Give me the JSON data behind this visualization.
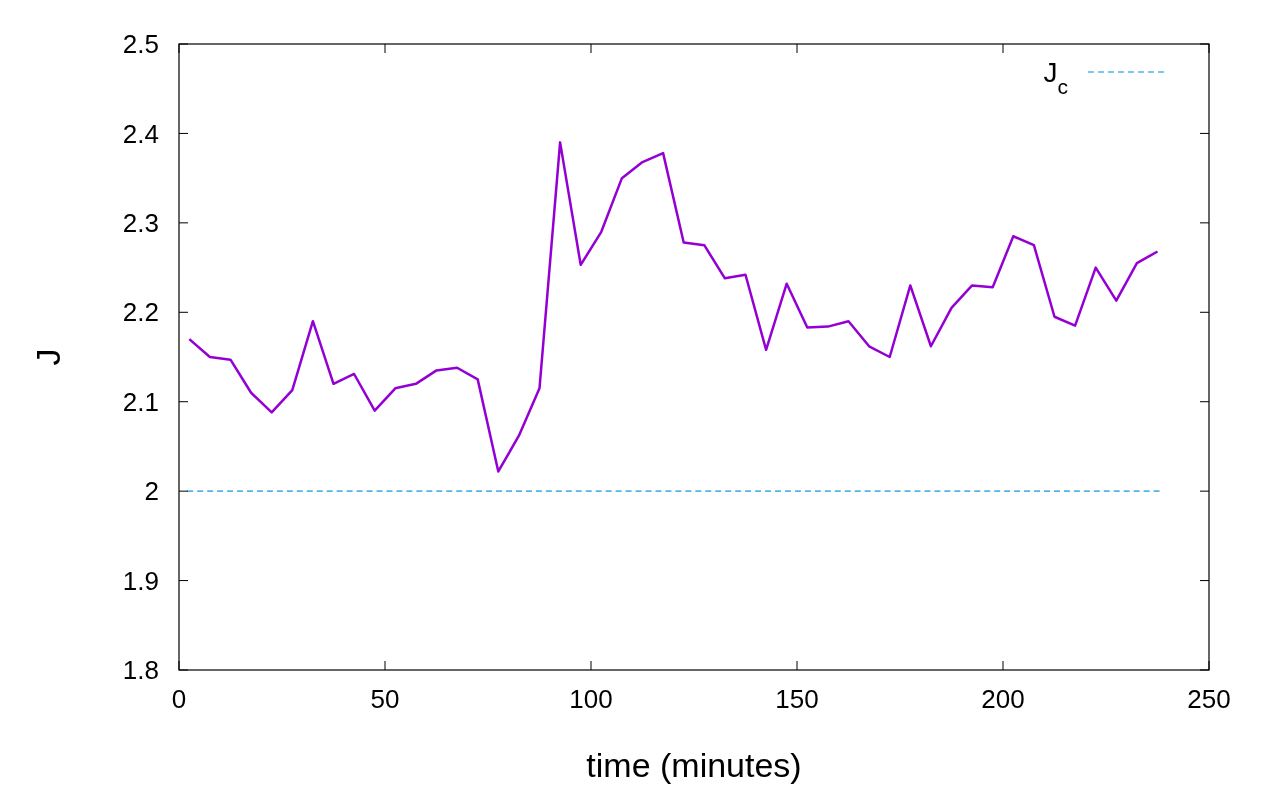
{
  "chart_data": {
    "type": "line",
    "xlabel": "time (minutes)",
    "ylabel": "J",
    "xlim": [
      0,
      250
    ],
    "xticks": [
      0,
      50,
      100,
      150,
      200,
      250
    ],
    "ylim": [
      1.8,
      2.5
    ],
    "yticks": [
      1.8,
      1.9,
      2,
      2.1,
      2.2,
      2.3,
      2.4,
      2.5
    ],
    "grid": false,
    "legend": "top right",
    "marker": "none",
    "series": [
      {
        "color": "#9400d3",
        "line_style": "solid",
        "x": [
          2.5,
          7.5,
          12.5,
          17.5,
          22.5,
          27.5,
          32.5,
          37.5,
          42.5,
          47.5,
          52.5,
          57.5,
          62.5,
          67.5,
          72.5,
          77.5,
          82.5,
          87.5,
          92.5,
          97.5,
          102.5,
          107.5,
          112.5,
          117.5,
          122.5,
          127.5,
          132.5,
          137.5,
          142.5,
          147.5,
          152.5,
          157.5,
          162.5,
          167.5,
          172.5,
          177.5,
          182.5,
          187.5,
          192.5,
          197.5,
          202.5,
          207.5,
          212.5,
          217.5,
          222.5,
          227.5,
          232.5,
          237.5
        ],
        "values": [
          2.17,
          2.15,
          2.147,
          2.11,
          2.088,
          2.113,
          2.19,
          2.12,
          2.131,
          2.09,
          2.115,
          2.12,
          2.135,
          2.138,
          2.125,
          2.022,
          2.062,
          2.115,
          2.39,
          2.253,
          2.29,
          2.35,
          2.368,
          2.378,
          2.278,
          2.275,
          2.238,
          2.242,
          2.158,
          2.232,
          2.183,
          2.184,
          2.19,
          2.162,
          2.15,
          2.23,
          2.162,
          2.205,
          2.23,
          2.228,
          2.285,
          2.275,
          2.195,
          2.185,
          2.25,
          2.213,
          2.255,
          2.268
        ]
      },
      {
        "name": "J$_{c}$",
        "color": "#56b4e9",
        "line_style": "dashed",
        "x": [
          2,
          238
        ],
        "values": [
          2,
          2
        ]
      }
    ]
  }
}
